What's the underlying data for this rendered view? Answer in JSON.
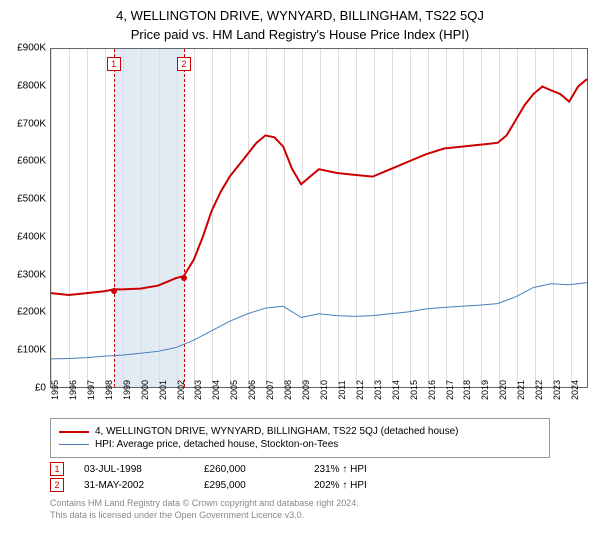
{
  "title_line1": "4, WELLINGTON DRIVE, WYNYARD, BILLINGHAM, TS22 5QJ",
  "title_line2": "Price paid vs. HM Land Registry's House Price Index (HPI)",
  "chart": {
    "type": "line",
    "ylim": [
      0,
      900000
    ],
    "ytick_step": 100000,
    "yticks": [
      "£0",
      "£100K",
      "£200K",
      "£300K",
      "£400K",
      "£500K",
      "£600K",
      "£700K",
      "£800K",
      "£900K"
    ],
    "xlim": [
      1995,
      2025
    ],
    "xticks": [
      1995,
      1996,
      1997,
      1998,
      1999,
      2000,
      2001,
      2002,
      2003,
      2004,
      2005,
      2006,
      2007,
      2008,
      2009,
      2010,
      2011,
      2012,
      2013,
      2014,
      2015,
      2016,
      2017,
      2018,
      2019,
      2020,
      2021,
      2022,
      2023,
      2024
    ],
    "background_color": "#ffffff",
    "grid_color": "#dddddd",
    "guide_color": "#cc0000",
    "guide_dash": "2,2",
    "shade_color": "#e2eaf3",
    "shade_range": [
      1998.5,
      2002.42
    ],
    "series": {
      "price": {
        "label": "4, WELLINGTON DRIVE, WYNYARD, BILLINGHAM, TS22 5QJ (detached house)",
        "color": "#cc0000",
        "line_width": 2,
        "data": [
          [
            1995,
            250000
          ],
          [
            1996,
            245000
          ],
          [
            1997,
            250000
          ],
          [
            1998,
            255000
          ],
          [
            1998.5,
            260000
          ],
          [
            1999,
            260000
          ],
          [
            2000,
            262000
          ],
          [
            2001,
            270000
          ],
          [
            2001.5,
            280000
          ],
          [
            2002,
            290000
          ],
          [
            2002.42,
            295000
          ],
          [
            2003,
            340000
          ],
          [
            2003.5,
            400000
          ],
          [
            2004,
            470000
          ],
          [
            2004.5,
            520000
          ],
          [
            2005,
            560000
          ],
          [
            2005.5,
            590000
          ],
          [
            2006,
            620000
          ],
          [
            2006.5,
            650000
          ],
          [
            2007,
            670000
          ],
          [
            2007.5,
            665000
          ],
          [
            2008,
            640000
          ],
          [
            2008.5,
            580000
          ],
          [
            2009,
            540000
          ],
          [
            2009.5,
            560000
          ],
          [
            2010,
            580000
          ],
          [
            2011,
            570000
          ],
          [
            2012,
            565000
          ],
          [
            2013,
            560000
          ],
          [
            2014,
            580000
          ],
          [
            2015,
            600000
          ],
          [
            2016,
            620000
          ],
          [
            2017,
            635000
          ],
          [
            2018,
            640000
          ],
          [
            2019,
            645000
          ],
          [
            2020,
            650000
          ],
          [
            2020.5,
            670000
          ],
          [
            2021,
            710000
          ],
          [
            2021.5,
            750000
          ],
          [
            2022,
            780000
          ],
          [
            2022.5,
            800000
          ],
          [
            2023,
            790000
          ],
          [
            2023.5,
            780000
          ],
          [
            2024,
            760000
          ],
          [
            2024.5,
            800000
          ],
          [
            2025,
            820000
          ]
        ]
      },
      "hpi": {
        "label": "HPI: Average price, detached house, Stockton-on-Tees",
        "color": "#4a7ebb",
        "line_width": 1,
        "data": [
          [
            1995,
            75000
          ],
          [
            1996,
            76000
          ],
          [
            1997,
            78000
          ],
          [
            1998,
            82000
          ],
          [
            1999,
            85000
          ],
          [
            2000,
            90000
          ],
          [
            2001,
            95000
          ],
          [
            2002,
            105000
          ],
          [
            2003,
            125000
          ],
          [
            2004,
            150000
          ],
          [
            2005,
            175000
          ],
          [
            2006,
            195000
          ],
          [
            2007,
            210000
          ],
          [
            2008,
            215000
          ],
          [
            2008.5,
            200000
          ],
          [
            2009,
            185000
          ],
          [
            2010,
            195000
          ],
          [
            2011,
            190000
          ],
          [
            2012,
            188000
          ],
          [
            2013,
            190000
          ],
          [
            2014,
            195000
          ],
          [
            2015,
            200000
          ],
          [
            2016,
            208000
          ],
          [
            2017,
            212000
          ],
          [
            2018,
            215000
          ],
          [
            2019,
            218000
          ],
          [
            2020,
            222000
          ],
          [
            2021,
            240000
          ],
          [
            2022,
            265000
          ],
          [
            2023,
            275000
          ],
          [
            2024,
            272000
          ],
          [
            2025,
            278000
          ]
        ]
      }
    },
    "sale_points": [
      {
        "x": 1998.5,
        "y": 260000,
        "color": "#cc0000"
      },
      {
        "x": 2002.42,
        "y": 295000,
        "color": "#cc0000"
      }
    ],
    "markers": [
      {
        "n": "1",
        "x": 1998.5,
        "top_y": 860000
      },
      {
        "n": "2",
        "x": 2002.42,
        "top_y": 860000
      }
    ]
  },
  "legend": {
    "border_color": "#999999"
  },
  "sales": [
    {
      "n": "1",
      "date": "03-JUL-1998",
      "price": "£260,000",
      "delta": "231% ↑ HPI"
    },
    {
      "n": "2",
      "date": "31-MAY-2002",
      "price": "£295,000",
      "delta": "202% ↑ HPI"
    }
  ],
  "footer_line1": "Contains HM Land Registry data © Crown copyright and database right 2024.",
  "footer_line2": "This data is licensed under the Open Government Licence v3.0."
}
